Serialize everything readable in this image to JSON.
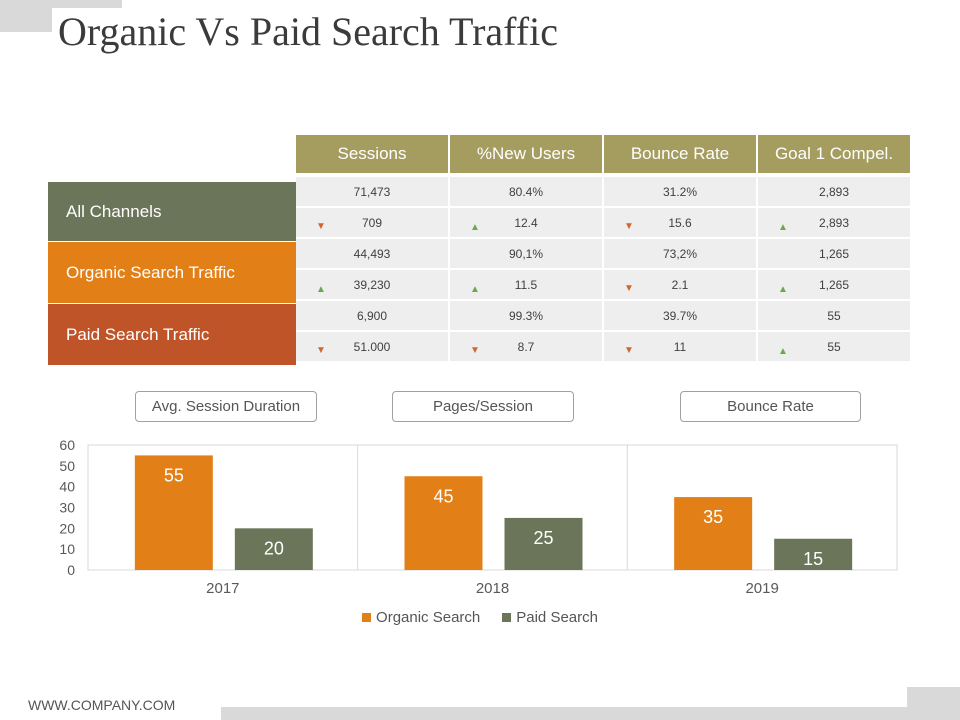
{
  "title": "Organic Vs Paid Search Traffic",
  "colors": {
    "organic": "#e37f17",
    "paid": "#6b7559",
    "allChannels": "#6b7559",
    "organicTraffic": "#e37f17",
    "paidTraffic": "#bf5429",
    "header": "#a59c5f"
  },
  "table": {
    "headers": [
      "Sessions",
      "%New Users",
      "Bounce Rate",
      "Goal 1 Compel."
    ],
    "channels": [
      {
        "label": "All Channels",
        "rows": [
          [
            {
              "v": "71,473"
            },
            {
              "v": "80.4%"
            },
            {
              "v": "31.2%"
            },
            {
              "v": "2,893"
            }
          ],
          [
            {
              "v": "709",
              "dir": "down"
            },
            {
              "v": "12.4",
              "dir": "up"
            },
            {
              "v": "15.6",
              "dir": "down"
            },
            {
              "v": "2,893",
              "dir": "up"
            }
          ]
        ]
      },
      {
        "label": "Organic Search Traffic",
        "rows": [
          [
            {
              "v": "44,493"
            },
            {
              "v": "90,1%"
            },
            {
              "v": "73,2%"
            },
            {
              "v": "1,265"
            }
          ],
          [
            {
              "v": "39,230",
              "dir": "up"
            },
            {
              "v": "11.5",
              "dir": "up"
            },
            {
              "v": "2.1",
              "dir": "down"
            },
            {
              "v": "1,265",
              "dir": "up"
            }
          ]
        ]
      },
      {
        "label": "Paid Search Traffic",
        "rows": [
          [
            {
              "v": "6,900"
            },
            {
              "v": "99.3%"
            },
            {
              "v": "39.7%"
            },
            {
              "v": "55"
            }
          ],
          [
            {
              "v": "51.000",
              "dir": "down"
            },
            {
              "v": "8.7",
              "dir": "down"
            },
            {
              "v": "11",
              "dir": "down"
            },
            {
              "v": "55",
              "dir": "up"
            }
          ]
        ]
      }
    ]
  },
  "metric_pills": [
    "Avg. Session Duration",
    "Pages/Session",
    "Bounce Rate"
  ],
  "chart_data": {
    "type": "bar",
    "categories": [
      "2017",
      "2018",
      "2019"
    ],
    "series": [
      {
        "name": "Organic Search",
        "values": [
          55,
          45,
          35
        ]
      },
      {
        "name": "Paid Search",
        "values": [
          20,
          25,
          15
        ]
      }
    ],
    "ylim": [
      0,
      60
    ],
    "yticks": [
      0,
      10,
      20,
      30,
      40,
      50,
      60
    ],
    "xlabel": "",
    "ylabel": "",
    "legend": "bottom",
    "grid": true
  },
  "footer": "WWW.COMPANY.COM"
}
